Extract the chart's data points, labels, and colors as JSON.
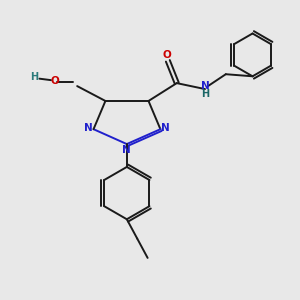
{
  "bg_color": "#e8e8e8",
  "bond_color": "#1a1a1a",
  "N_color": "#2020cc",
  "O_color": "#cc0000",
  "NH_color": "#1a6666",
  "HO_color": "#2a7a7a",
  "figsize": [
    3.0,
    3.0
  ],
  "dpi": 100,
  "xlim": [
    0,
    10
  ],
  "ylim": [
    0,
    10
  ]
}
